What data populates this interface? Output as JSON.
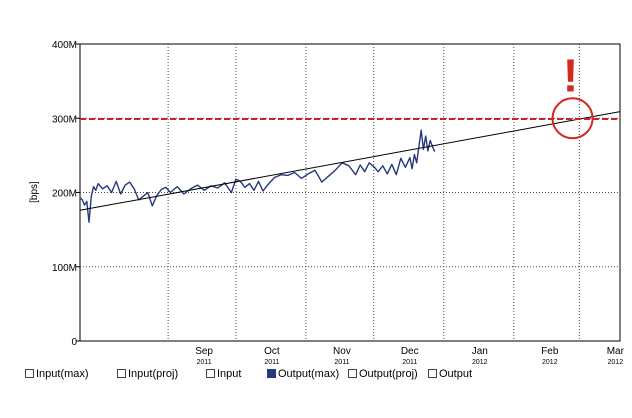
{
  "chart_data": {
    "type": "line",
    "ylabel": "[bps]",
    "yticks": [
      "0",
      "100M",
      "200M",
      "300M",
      "400M"
    ],
    "ytick_values": [
      0,
      100,
      200,
      300,
      400
    ],
    "ylim": [
      0,
      400
    ],
    "y_unit": "Mbps",
    "xlim": [
      "2011-07-24",
      "2012-03-19"
    ],
    "xticks": [
      {
        "month": "Sep",
        "year": "2011",
        "date": "2011-09-01"
      },
      {
        "month": "Oct",
        "year": "2011",
        "date": "2011-10-01"
      },
      {
        "month": "Nov",
        "year": "2011",
        "date": "2011-11-01"
      },
      {
        "month": "Dec",
        "year": "2011",
        "date": "2011-12-01"
      },
      {
        "month": "Jan",
        "year": "2012",
        "date": "2012-01-01"
      },
      {
        "month": "Feb",
        "year": "2012",
        "date": "2012-02-01"
      },
      {
        "month": "Mar",
        "year": "2012",
        "date": "2012-03-01"
      }
    ],
    "grid": true,
    "legend_placement": "bottom",
    "series": [
      {
        "name": "Output(max)",
        "color": "#253a7e",
        "x": [
          "2011-07-24",
          "2011-07-25",
          "2011-07-26",
          "2011-07-27",
          "2011-07-28",
          "2011-07-29",
          "2011-07-30",
          "2011-07-31",
          "2011-08-01",
          "2011-08-03",
          "2011-08-05",
          "2011-08-07",
          "2011-08-09",
          "2011-08-11",
          "2011-08-13",
          "2011-08-15",
          "2011-08-17",
          "2011-08-19",
          "2011-08-21",
          "2011-08-23",
          "2011-08-25",
          "2011-08-27",
          "2011-08-29",
          "2011-08-31",
          "2011-09-02",
          "2011-09-05",
          "2011-09-08",
          "2011-09-11",
          "2011-09-14",
          "2011-09-17",
          "2011-09-20",
          "2011-09-23",
          "2011-09-26",
          "2011-09-29",
          "2011-10-01",
          "2011-10-03",
          "2011-10-05",
          "2011-10-07",
          "2011-10-09",
          "2011-10-11",
          "2011-10-13",
          "2011-10-15",
          "2011-10-18",
          "2011-10-21",
          "2011-10-24",
          "2011-10-27",
          "2011-10-30",
          "2011-11-02",
          "2011-11-05",
          "2011-11-08",
          "2011-11-11",
          "2011-11-14",
          "2011-11-17",
          "2011-11-20",
          "2011-11-23",
          "2011-11-25",
          "2011-11-27",
          "2011-11-29",
          "2011-12-01",
          "2011-12-03",
          "2011-12-05",
          "2011-12-07",
          "2011-12-09",
          "2011-12-11",
          "2011-12-13",
          "2011-12-15",
          "2011-12-17",
          "2011-12-18",
          "2011-12-19",
          "2011-12-20",
          "2011-12-21",
          "2011-12-22",
          "2011-12-23",
          "2011-12-24",
          "2011-12-25",
          "2011-12-26",
          "2011-12-27",
          "2011-12-28"
        ],
        "y": [
          193,
          190,
          183,
          188,
          160,
          195,
          208,
          203,
          212,
          205,
          209,
          200,
          215,
          198,
          210,
          214,
          205,
          190,
          195,
          200,
          182,
          196,
          204,
          207,
          200,
          208,
          198,
          205,
          210,
          203,
          209,
          206,
          213,
          200,
          218,
          215,
          207,
          212,
          203,
          215,
          202,
          210,
          220,
          224,
          223,
          227,
          219,
          225,
          230,
          214,
          222,
          230,
          240,
          236,
          224,
          237,
          228,
          240,
          235,
          228,
          236,
          225,
          238,
          224,
          246,
          234,
          247,
          232,
          251,
          240,
          262,
          284,
          258,
          276,
          256,
          270,
          262,
          255
        ]
      },
      {
        "name": "trend",
        "color": "#000000",
        "x": [
          "2011-07-24",
          "2012-03-19"
        ],
        "y": [
          176,
          309
        ]
      },
      {
        "name": "threshold",
        "color": "#cc2222",
        "x": [
          "2011-07-24",
          "2012-03-19"
        ],
        "y": [
          299,
          299
        ]
      }
    ],
    "annotation": {
      "mark": "!",
      "date": "2012-02-27",
      "value": 300,
      "color": "#d42a1e"
    }
  },
  "legend": [
    {
      "label": "Input(max)",
      "filled": false
    },
    {
      "label": "Input(proj)",
      "filled": false
    },
    {
      "label": "Input",
      "filled": false
    },
    {
      "label": "Output(max)",
      "filled": true
    },
    {
      "label": "Output(proj)",
      "filled": false
    },
    {
      "label": "Output",
      "filled": false
    }
  ]
}
